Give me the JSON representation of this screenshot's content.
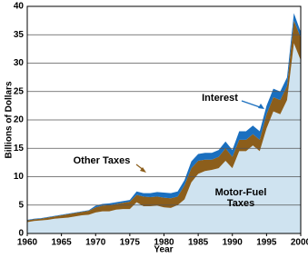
{
  "chart_data": {
    "type": "stacked_area",
    "x_label": "Year",
    "y_label": "Billions of Dollars",
    "x": [
      1960,
      1961,
      1962,
      1963,
      1964,
      1965,
      1966,
      1967,
      1968,
      1969,
      1970,
      1971,
      1972,
      1973,
      1974,
      1975,
      1976,
      1977,
      1978,
      1979,
      1980,
      1981,
      1982,
      1983,
      1984,
      1985,
      1986,
      1987,
      1988,
      1989,
      1990,
      1991,
      1992,
      1993,
      1994,
      1995,
      1996,
      1997,
      1998,
      1999,
      2000
    ],
    "series": [
      {
        "name": "Motor-Fuel Taxes",
        "color": "#cfe3f0",
        "values": [
          2.0,
          2.2,
          2.3,
          2.4,
          2.6,
          2.7,
          2.8,
          3.0,
          3.2,
          3.3,
          3.7,
          3.9,
          3.9,
          4.2,
          4.3,
          4.3,
          5.5,
          4.8,
          4.8,
          4.9,
          4.6,
          4.5,
          5.0,
          6.0,
          9.0,
          10.5,
          11.0,
          11.2,
          11.5,
          12.8,
          11.5,
          14.5,
          14.5,
          15.5,
          14.5,
          18.5,
          21.5,
          21.0,
          23.5,
          33.5,
          30.5
        ]
      },
      {
        "name": "Other Taxes",
        "color": "#8c5e1b",
        "values": [
          0.3,
          0.3,
          0.3,
          0.4,
          0.4,
          0.5,
          0.6,
          0.6,
          0.6,
          0.7,
          0.9,
          1.0,
          1.1,
          1.0,
          1.1,
          1.3,
          1.3,
          1.7,
          1.6,
          1.6,
          1.7,
          1.7,
          1.5,
          2.5,
          2.5,
          2.3,
          2.0,
          1.8,
          2.0,
          2.2,
          2.0,
          2.0,
          2.0,
          2.0,
          2.0,
          2.5,
          2.5,
          2.5,
          2.5,
          4.0,
          4.0
        ]
      },
      {
        "name": "Interest",
        "color": "#1a6fbf",
        "values": [
          0.1,
          0.1,
          0.1,
          0.1,
          0.1,
          0.1,
          0.1,
          0.1,
          0.1,
          0.1,
          0.3,
          0.3,
          0.3,
          0.3,
          0.3,
          0.3,
          0.6,
          0.6,
          0.7,
          0.8,
          0.9,
          0.9,
          0.9,
          0.9,
          1.2,
          1.2,
          1.2,
          1.2,
          1.2,
          1.2,
          1.2,
          1.5,
          1.5,
          1.5,
          1.5,
          1.5,
          1.5,
          1.5,
          1.5,
          1.3,
          1.0
        ]
      }
    ],
    "xlim": [
      1960,
      2000
    ],
    "xticks": [
      1960,
      1965,
      1970,
      1975,
      1980,
      1985,
      1990,
      1995,
      2000
    ],
    "ylim": [
      0,
      40
    ],
    "yticks": [
      0,
      5,
      10,
      15,
      20,
      25,
      30,
      35,
      40
    ],
    "grid": true
  }
}
